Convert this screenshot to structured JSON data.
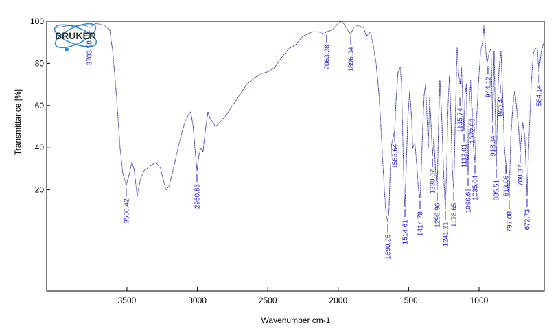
{
  "chart_data": {
    "type": "line",
    "logo": "BRUKER",
    "xlabel": "Wavenumber cm-1",
    "ylabel": "Transmittance [%]",
    "xlim": [
      4070,
      537
    ],
    "ylim": [
      -28,
      100
    ],
    "xticks": [
      3500,
      3000,
      2500,
      2000,
      1500,
      1000
    ],
    "yticks": [
      20,
      40,
      60,
      80,
      100
    ],
    "color": "#1a1a8c",
    "x": [
      4000,
      3900,
      3800,
      3768,
      3720,
      3660,
      3622,
      3600,
      3575,
      3549,
      3530,
      3505,
      3485,
      3465,
      3450,
      3427,
      3405,
      3380,
      3340,
      3295,
      3260,
      3240,
      3222,
      3200,
      3170,
      3130,
      3090,
      3060,
      3047,
      3030,
      3015,
      3003,
      2990,
      2975,
      2960,
      2940,
      2925,
      2910,
      2890,
      2870,
      2842,
      2800,
      2750,
      2700,
      2650,
      2600,
      2550,
      2500,
      2452,
      2400,
      2350,
      2300,
      2250,
      2184,
      2140,
      2100,
      2082,
      2040,
      2000,
      1975,
      1950,
      1925,
      1911,
      1890,
      1860,
      1819,
      1800,
      1770,
      1750,
      1731,
      1710,
      1697,
      1685,
      1672,
      1660,
      1648,
      1640,
      1630,
      1620,
      1610,
      1599,
      1590,
      1575,
      1560,
      1550,
      1540,
      1530,
      1526,
      1515,
      1505,
      1492,
      1480,
      1470,
      1455,
      1440,
      1430,
      1419,
      1410,
      1400,
      1390,
      1380,
      1370,
      1360,
      1351,
      1340,
      1331,
      1320,
      1310,
      1297,
      1290,
      1278,
      1265,
      1250,
      1239,
      1230,
      1220,
      1210,
      1200,
      1190,
      1180,
      1170,
      1156,
      1145,
      1135,
      1125,
      1115,
      1107,
      1100,
      1090,
      1078,
      1070,
      1060,
      1050,
      1040,
      1029,
      1020,
      1005,
      990,
      975,
      966,
      955,
      944,
      930,
      915,
      903,
      893,
      878,
      865,
      855,
      844,
      830,
      820,
      810,
      800,
      786,
      775,
      760,
      747,
      735,
      720,
      708,
      700,
      690,
      675,
      659,
      645,
      630,
      615,
      600,
      586,
      576,
      560,
      545,
      537
    ],
    "values": [
      97,
      98,
      98,
      97,
      99,
      98,
      96,
      85,
      65,
      40,
      28,
      22,
      27,
      33,
      30,
      17,
      25,
      29,
      31,
      33,
      30,
      24,
      20,
      22,
      30,
      42,
      52,
      56,
      57,
      50,
      38,
      29,
      36,
      40,
      38,
      50,
      57,
      54,
      52,
      50,
      52,
      55,
      60,
      65,
      70,
      73,
      75,
      76,
      78,
      83,
      87,
      89,
      93,
      95,
      95,
      94,
      95,
      96,
      99,
      100,
      98,
      95,
      94,
      97,
      98,
      97,
      93,
      95,
      88,
      80,
      65,
      50,
      35,
      20,
      8,
      5,
      10,
      30,
      42,
      45,
      48,
      62,
      76,
      78,
      70,
      40,
      15,
      12,
      35,
      55,
      67,
      55,
      40,
      42,
      30,
      20,
      16,
      30,
      50,
      65,
      70,
      55,
      40,
      64,
      50,
      36,
      45,
      30,
      20,
      45,
      72,
      55,
      25,
      11,
      30,
      60,
      74,
      55,
      30,
      20,
      50,
      88,
      75,
      70,
      78,
      60,
      48,
      65,
      70,
      27,
      60,
      72,
      55,
      40,
      33,
      50,
      70,
      85,
      90,
      98,
      88,
      80,
      85,
      87,
      52,
      86,
      31,
      70,
      80,
      86,
      60,
      40,
      33,
      25,
      16,
      45,
      60,
      67,
      60,
      50,
      38,
      45,
      52,
      45,
      17,
      45,
      70,
      85,
      87,
      87,
      76,
      85,
      89,
      90
    ],
    "annotations": [
      {
        "x": 3768,
        "y": 97,
        "label": "3703.58"
      },
      {
        "x": 3505,
        "y": 22,
        "label": "3500.42"
      },
      {
        "x": 3003,
        "y": 29,
        "label": "2950.83"
      },
      {
        "x": 2082,
        "y": 95,
        "label": "2063.28"
      },
      {
        "x": 1911,
        "y": 94,
        "label": "1896.94"
      },
      {
        "x": 1648,
        "y": 5,
        "label": "1690.25"
      },
      {
        "x": 1599,
        "y": 48,
        "label": "1583.64"
      },
      {
        "x": 1526,
        "y": 12,
        "label": "1514.61"
      },
      {
        "x": 1419,
        "y": 16,
        "label": "1414.78"
      },
      {
        "x": 1331,
        "y": 36,
        "label": "1330.07"
      },
      {
        "x": 1297,
        "y": 20,
        "label": "1298.96"
      },
      {
        "x": 1239,
        "y": 11,
        "label": "1241.21"
      },
      {
        "x": 1180,
        "y": 20,
        "label": "1178.65"
      },
      {
        "x": 1136,
        "y": 65,
        "label": "1135.74"
      },
      {
        "x": 1107,
        "y": 48,
        "label": "1112.01"
      },
      {
        "x": 1078,
        "y": 27,
        "label": "1090.63"
      },
      {
        "x": 1049,
        "y": 60,
        "label": "1072.63"
      },
      {
        "x": 1029,
        "y": 33,
        "label": "1035.04"
      },
      {
        "x": 937,
        "y": 80,
        "label": "944.12"
      },
      {
        "x": 903,
        "y": 52,
        "label": "918.34"
      },
      {
        "x": 878,
        "y": 31,
        "label": "885.51"
      },
      {
        "x": 849,
        "y": 71,
        "label": "860.41"
      },
      {
        "x": 810,
        "y": 33,
        "label": "813.06"
      },
      {
        "x": 786,
        "y": 16,
        "label": "797.08"
      },
      {
        "x": 708,
        "y": 38,
        "label": "708.37"
      },
      {
        "x": 659,
        "y": 17,
        "label": "672.73"
      },
      {
        "x": 576,
        "y": 76,
        "label": "584.14"
      }
    ]
  }
}
